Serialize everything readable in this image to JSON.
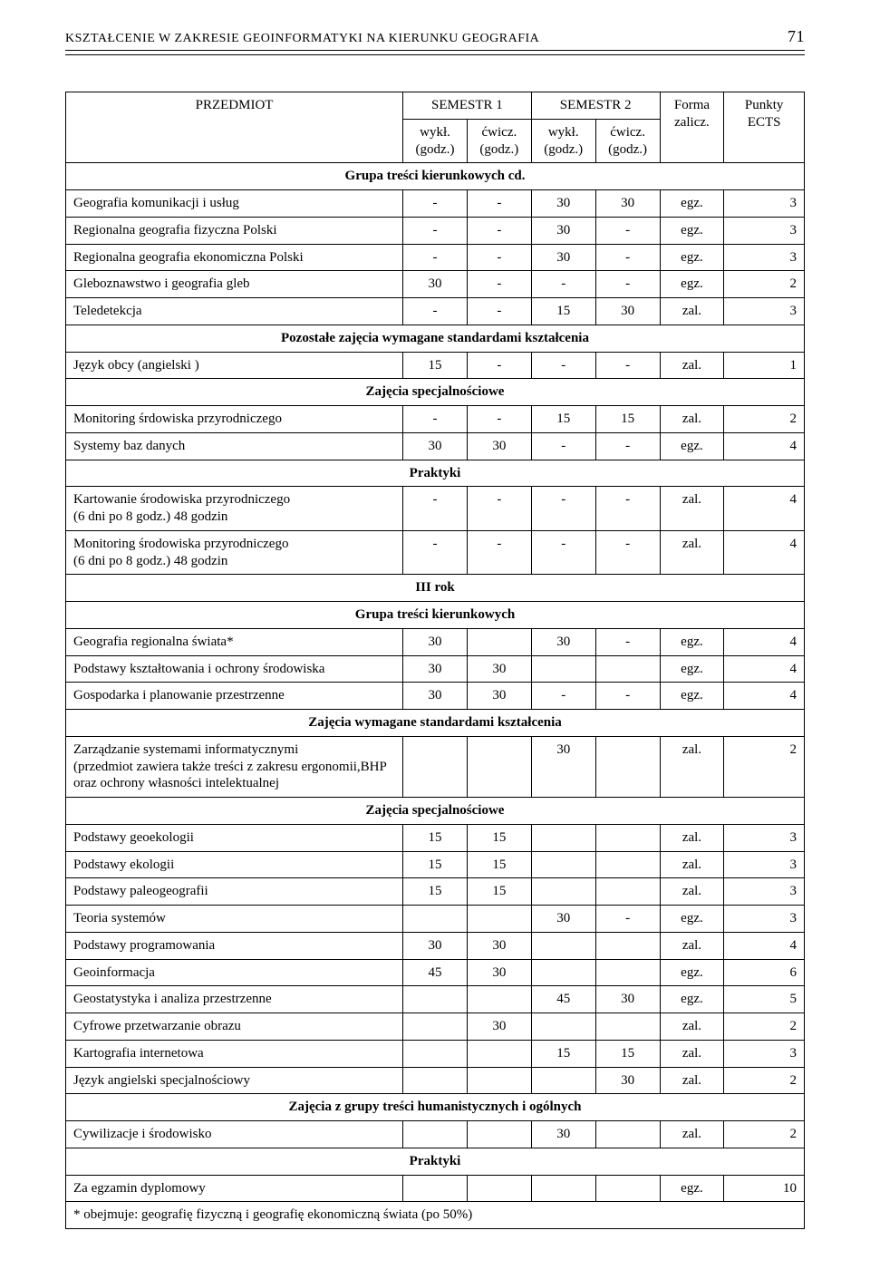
{
  "header": {
    "title": "KSZTAŁCENIE W ZAKRESIE GEOINFORMATYKI NA KIERUNKU GEOGRAFIA",
    "page_number": "71"
  },
  "table": {
    "columns": {
      "subject": "PRZEDMIOT",
      "sem1": "SEMESTR 1",
      "sem2": "SEMESTR 2",
      "wyk": "wykł.\n(godz.)",
      "cwicz": "ćwicz.\n(godz.)",
      "forma": "Forma\nzalicz.",
      "ects": "Punkty\nECTS"
    },
    "sections": [
      {
        "title": "Grupa treści kierunkowych cd.",
        "rows": [
          {
            "subject": "Geografia komunikacji i usług",
            "s1w": "-",
            "s1c": "-",
            "s2w": "30",
            "s2c": "30",
            "form": "egz.",
            "ects": "3"
          },
          {
            "subject": "Regionalna geografia fizyczna Polski",
            "s1w": "-",
            "s1c": "-",
            "s2w": "30",
            "s2c": "-",
            "form": "egz.",
            "ects": "3"
          },
          {
            "subject": "Regionalna geografia ekonomiczna Polski",
            "s1w": "-",
            "s1c": "-",
            "s2w": "30",
            "s2c": "-",
            "form": "egz.",
            "ects": "3"
          },
          {
            "subject": "Gleboznawstwo i geografia gleb",
            "s1w": "30",
            "s1c": "-",
            "s2w": "-",
            "s2c": "-",
            "form": "egz.",
            "ects": "2"
          },
          {
            "subject": "Teledetekcja",
            "s1w": "-",
            "s1c": "-",
            "s2w": "15",
            "s2c": "30",
            "form": "zal.",
            "ects": "3"
          }
        ]
      },
      {
        "title": "Pozostałe zajęcia wymagane standardami kształcenia",
        "rows": [
          {
            "subject": "Język obcy (angielski )",
            "s1w": "15",
            "s1c": "-",
            "s2w": "-",
            "s2c": "-",
            "form": "zal.",
            "ects": "1"
          }
        ]
      },
      {
        "title": "Zajęcia specjalnościowe",
        "rows": [
          {
            "subject": "Monitoring śrdowiska przyrodniczego",
            "s1w": "-",
            "s1c": "-",
            "s2w": "15",
            "s2c": "15",
            "form": "zal.",
            "ects": "2"
          },
          {
            "subject": "Systemy baz danych",
            "s1w": "30",
            "s1c": "30",
            "s2w": "-",
            "s2c": "-",
            "form": "egz.",
            "ects": "4"
          }
        ]
      },
      {
        "title": "Praktyki",
        "rows": [
          {
            "subject": "Kartowanie środowiska przyrodniczego\n(6 dni po 8 godz.) 48 godzin",
            "s1w": "-",
            "s1c": "-",
            "s2w": "-",
            "s2c": "-",
            "form": "zal.",
            "ects": "4"
          },
          {
            "subject": "Monitoring środowiska przyrodniczego\n(6 dni po 8 godz.) 48 godzin",
            "s1w": "-",
            "s1c": "-",
            "s2w": "-",
            "s2c": "-",
            "form": "zal.",
            "ects": "4"
          }
        ]
      },
      {
        "title": "III rok",
        "rows": []
      },
      {
        "title": "Grupa treści kierunkowych",
        "rows": [
          {
            "subject": "Geografia regionalna świata*",
            "s1w": "30",
            "s1c": "",
            "s2w": "30",
            "s2c": "-",
            "form": "egz.",
            "ects": "4"
          },
          {
            "subject": "Podstawy kształtowania i ochrony środowiska",
            "s1w": "30",
            "s1c": "30",
            "s2w": "",
            "s2c": "",
            "form": "egz.",
            "ects": "4"
          },
          {
            "subject": "Gospodarka i planowanie przestrzenne",
            "s1w": "30",
            "s1c": "30",
            "s2w": "-",
            "s2c": "-",
            "form": "egz.",
            "ects": "4"
          }
        ]
      },
      {
        "title": "Zajęcia wymagane standardami kształcenia",
        "rows": [
          {
            "subject": "Zarządzanie systemami informatycznymi\n(przedmiot zawiera także treści z zakresu ergonomii,BHP oraz ochrony własności intelektualnej",
            "s1w": "",
            "s1c": "",
            "s2w": "30",
            "s2c": "",
            "form": "zal.",
            "ects": "2"
          }
        ]
      },
      {
        "title": "Zajęcia specjalnościowe",
        "rows": [
          {
            "subject": "Podstawy geoekologii",
            "s1w": "15",
            "s1c": "15",
            "s2w": "",
            "s2c": "",
            "form": "zal.",
            "ects": "3"
          },
          {
            "subject": "Podstawy ekologii",
            "s1w": "15",
            "s1c": "15",
            "s2w": "",
            "s2c": "",
            "form": "zal.",
            "ects": "3"
          },
          {
            "subject": "Podstawy paleogeografii",
            "s1w": "15",
            "s1c": "15",
            "s2w": "",
            "s2c": "",
            "form": "zal.",
            "ects": "3"
          },
          {
            "subject": "Teoria systemów",
            "s1w": "",
            "s1c": "",
            "s2w": "30",
            "s2c": "-",
            "form": "egz.",
            "ects": "3"
          },
          {
            "subject": "Podstawy programowania",
            "s1w": "30",
            "s1c": "30",
            "s2w": "",
            "s2c": "",
            "form": "zal.",
            "ects": "4"
          },
          {
            "subject": "Geoinformacja",
            "s1w": "45",
            "s1c": "30",
            "s2w": "",
            "s2c": "",
            "form": "egz.",
            "ects": "6"
          },
          {
            "subject": "Geostatystyka i analiza przestrzenne",
            "s1w": "",
            "s1c": "",
            "s2w": "45",
            "s2c": "30",
            "form": "egz.",
            "ects": "5"
          },
          {
            "subject": "Cyfrowe przetwarzanie obrazu",
            "s1w": "",
            "s1c": "30",
            "s2w": "",
            "s2c": "",
            "form": "zal.",
            "ects": "2"
          },
          {
            "subject": "Kartografia internetowa",
            "s1w": "",
            "s1c": "",
            "s2w": "15",
            "s2c": "15",
            "form": "zal.",
            "ects": "3"
          },
          {
            "subject": "Język angielski specjalnościowy",
            "s1w": "",
            "s1c": "",
            "s2w": "",
            "s2c": "30",
            "form": "zal.",
            "ects": "2"
          }
        ]
      },
      {
        "title": "Zajęcia z grupy treści humanistycznych i ogólnych",
        "rows": [
          {
            "subject": "Cywilizacje i środowisko",
            "s1w": "",
            "s1c": "",
            "s2w": "30",
            "s2c": "",
            "form": "zal.",
            "ects": "2"
          }
        ]
      },
      {
        "title": "Praktyki",
        "rows": [
          {
            "subject": "Za egzamin dyplomowy",
            "s1w": "",
            "s1c": "",
            "s2w": "",
            "s2c": "",
            "form": "egz.",
            "ects": "10"
          }
        ]
      }
    ],
    "footnote": "* obejmuje: geografię fizyczną i geografię ekonomiczną świata (po 50%)"
  }
}
